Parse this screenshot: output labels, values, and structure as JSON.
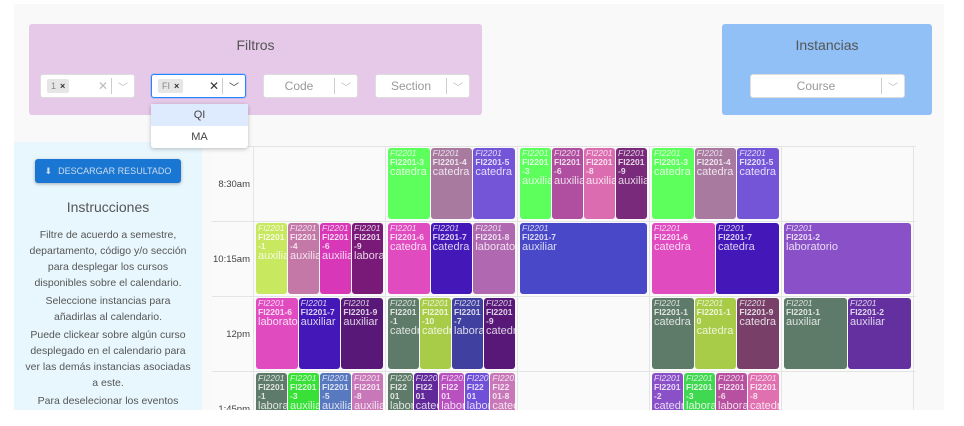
{
  "filtros": {
    "title": "Filtros",
    "semester": {
      "chip": "1"
    },
    "department": {
      "chip": "FI"
    },
    "code": {
      "placeholder": "Code"
    },
    "section": {
      "placeholder": "Section"
    },
    "dropdown": [
      "QI",
      "MA"
    ]
  },
  "instancias": {
    "title": "Instancias",
    "course": {
      "placeholder": "Course"
    }
  },
  "sidebar": {
    "download_label": "DESCARGAR RESULTADO",
    "instructions_title": "Instrucciones",
    "paragraphs": [
      "Filtre de acuerdo a semestre, departamento, código y/o sección para desplegar los cursos disponibles sobre el calendario.",
      "Seleccione instancias para añadirlas al calendario.",
      "Puede clickear sobre algún curso desplegado en el calendario para ver las demás instancias asociadas a este.",
      "Para deselecionar los eventos"
    ]
  },
  "calendar": {
    "rows": [
      {
        "time": "8:30am",
        "cells": [
          [],
          [
            {
              "course": "FI2201",
              "section": "FI2201-3",
              "type": "catedra",
              "color": "#5cff5c"
            },
            {
              "course": "FI2201",
              "section": "FI2201-4",
              "type": "catedra",
              "color": "#a87aa0"
            },
            {
              "course": "FI2201",
              "section": "FI2201-5",
              "type": "catedra",
              "color": "#7455d8"
            }
          ],
          [
            {
              "course": "FI2201",
              "section": "FI2201-3",
              "type": "auxiliar",
              "color": "#5cff5c"
            },
            {
              "course": "FI2201",
              "section": "FI2201-6",
              "type": "auxiliar",
              "color": "#b04fa0"
            },
            {
              "course": "FI2201",
              "section": "FI2201-8",
              "type": "auxiliar",
              "color": "#dc6cb0"
            },
            {
              "course": "FI2201",
              "section": "FI2201-9",
              "type": "auxiliar",
              "color": "#7a2a7a"
            }
          ],
          [
            {
              "course": "FI2201",
              "section": "FI2201-3",
              "type": "catedra",
              "color": "#5cff5c"
            },
            {
              "course": "FI2201",
              "section": "FI2201-4",
              "type": "catedra",
              "color": "#a87aa0"
            },
            {
              "course": "FI2201",
              "section": "FI2201-5",
              "type": "catedra",
              "color": "#7455d8"
            }
          ],
          []
        ]
      },
      {
        "time": "10:15am",
        "cells": [
          [
            {
              "course": "FI2201",
              "section": "FI2201-1",
              "type": "auxiliar",
              "color": "#c8e860"
            },
            {
              "course": "FI2201",
              "section": "FI2201-4",
              "type": "auxiliar",
              "color": "#c478a8"
            },
            {
              "course": "FI2201",
              "section": "FI2201-6",
              "type": "auxiliar",
              "color": "#d838b8"
            },
            {
              "course": "FI2201",
              "section": "FI2201-9",
              "type": "laboratorio",
              "color": "#7a1a78"
            }
          ],
          [
            {
              "course": "FI2201",
              "section": "FI2201-6",
              "type": "catedra",
              "color": "#e04cc0"
            },
            {
              "course": "FI2201",
              "section": "FI2201-7",
              "type": "catedra",
              "color": "#4418b8"
            },
            {
              "course": "FI2201",
              "section": "FI2201-8",
              "type": "laboratorio",
              "color": "#b068b0"
            }
          ],
          [
            {
              "course": "FI2201",
              "section": "FI2201-7",
              "type": "auxiliar",
              "color": "#4848c8"
            }
          ],
          [
            {
              "course": "FI2201",
              "section": "FI2201-6",
              "type": "catedra",
              "color": "#e04cc0"
            },
            {
              "course": "FI2201",
              "section": "FI2201-7",
              "type": "catedra",
              "color": "#4418b8"
            }
          ],
          [
            {
              "course": "FI2201",
              "section": "FI2201-2",
              "type": "laboratorio",
              "color": "#8a50c8"
            }
          ]
        ]
      },
      {
        "time": "12pm",
        "cells": [
          [
            {
              "course": "FI2201",
              "section": "FI2201-6",
              "type": "laboratorio",
              "color": "#e04cc0"
            },
            {
              "course": "FI2201",
              "section": "FI2201-7",
              "type": "auxiliar",
              "color": "#4418b8"
            },
            {
              "course": "FI2201",
              "section": "FI2201-9",
              "type": "auxiliar",
              "color": "#581878"
            }
          ],
          [
            {
              "course": "FI2201",
              "section": "FI2201-1",
              "type": "catedra",
              "color": "#5e7a68"
            },
            {
              "course": "FI2201",
              "section": "FI2201-10",
              "type": "catedra",
              "color": "#a8cc48"
            },
            {
              "course": "FI2201",
              "section": "FI2201-7",
              "type": "laboratorio",
              "color": "#4040a0"
            },
            {
              "course": "FI2201",
              "section": "FI2201-9",
              "type": "catedra",
              "color": "#581878"
            }
          ],
          [],
          [
            {
              "course": "FI2201",
              "section": "FI2201-1",
              "type": "catedra",
              "color": "#5e7a68"
            },
            {
              "course": "FI2201",
              "section": "FI2201-10",
              "type": "catedra",
              "color": "#a8cc48"
            },
            {
              "course": "FI2201",
              "section": "FI2201-9",
              "type": "catedra",
              "color": "#784068"
            }
          ],
          [
            {
              "course": "FI2201",
              "section": "FI2201-1",
              "type": "auxiliar",
              "color": "#5e7a68"
            },
            {
              "course": "FI2201",
              "section": "FI2201-2",
              "type": "auxiliar",
              "color": "#6430a0"
            }
          ]
        ]
      },
      {
        "time": "1:45pm",
        "cells": [
          [
            {
              "course": "FI2201",
              "section": "FI2201-1",
              "type": "laboratorio",
              "color": "#5e7a68"
            },
            {
              "course": "FI2201",
              "section": "FI2201-3",
              "type": "auxiliar",
              "color": "#38e038"
            },
            {
              "course": "FI2201",
              "section": "FI2201-5",
              "type": "auxiliar",
              "color": "#5878c0"
            },
            {
              "course": "FI2201",
              "section": "FI2201-8",
              "type": "auxiliar",
              "color": "#c878b8"
            }
          ],
          [
            {
              "course": "FI2201",
              "section": "FI2201",
              "type": "laboratorio",
              "color": "#5e7a68"
            },
            {
              "course": "FI2201",
              "section": "FI2201",
              "type": "catedra",
              "color": "#602898"
            },
            {
              "course": "FI2201",
              "section": "FI2201",
              "type": "laboratorio",
              "color": "#b850c0"
            },
            {
              "course": "FI2201",
              "section": "FI2201",
              "type": "laboratorio",
              "color": "#7050d8"
            },
            {
              "course": "FI2201",
              "section": "FI2201-8",
              "type": "catedra",
              "color": "#c878b8"
            }
          ],
          [],
          [
            {
              "course": "FI2201",
              "section": "FI2201-2",
              "type": "catedra",
              "color": "#8a50c8"
            },
            {
              "course": "FI2201",
              "section": "FI2201-3",
              "type": "laboratorio",
              "color": "#40d850"
            },
            {
              "course": "FI2201",
              "section": "FI2201-6",
              "type": "laboratorio",
              "color": "#b850a0"
            },
            {
              "course": "FI2201",
              "section": "FI2201-8",
              "type": "catedra",
              "color": "#e070b0"
            }
          ],
          []
        ]
      }
    ]
  }
}
